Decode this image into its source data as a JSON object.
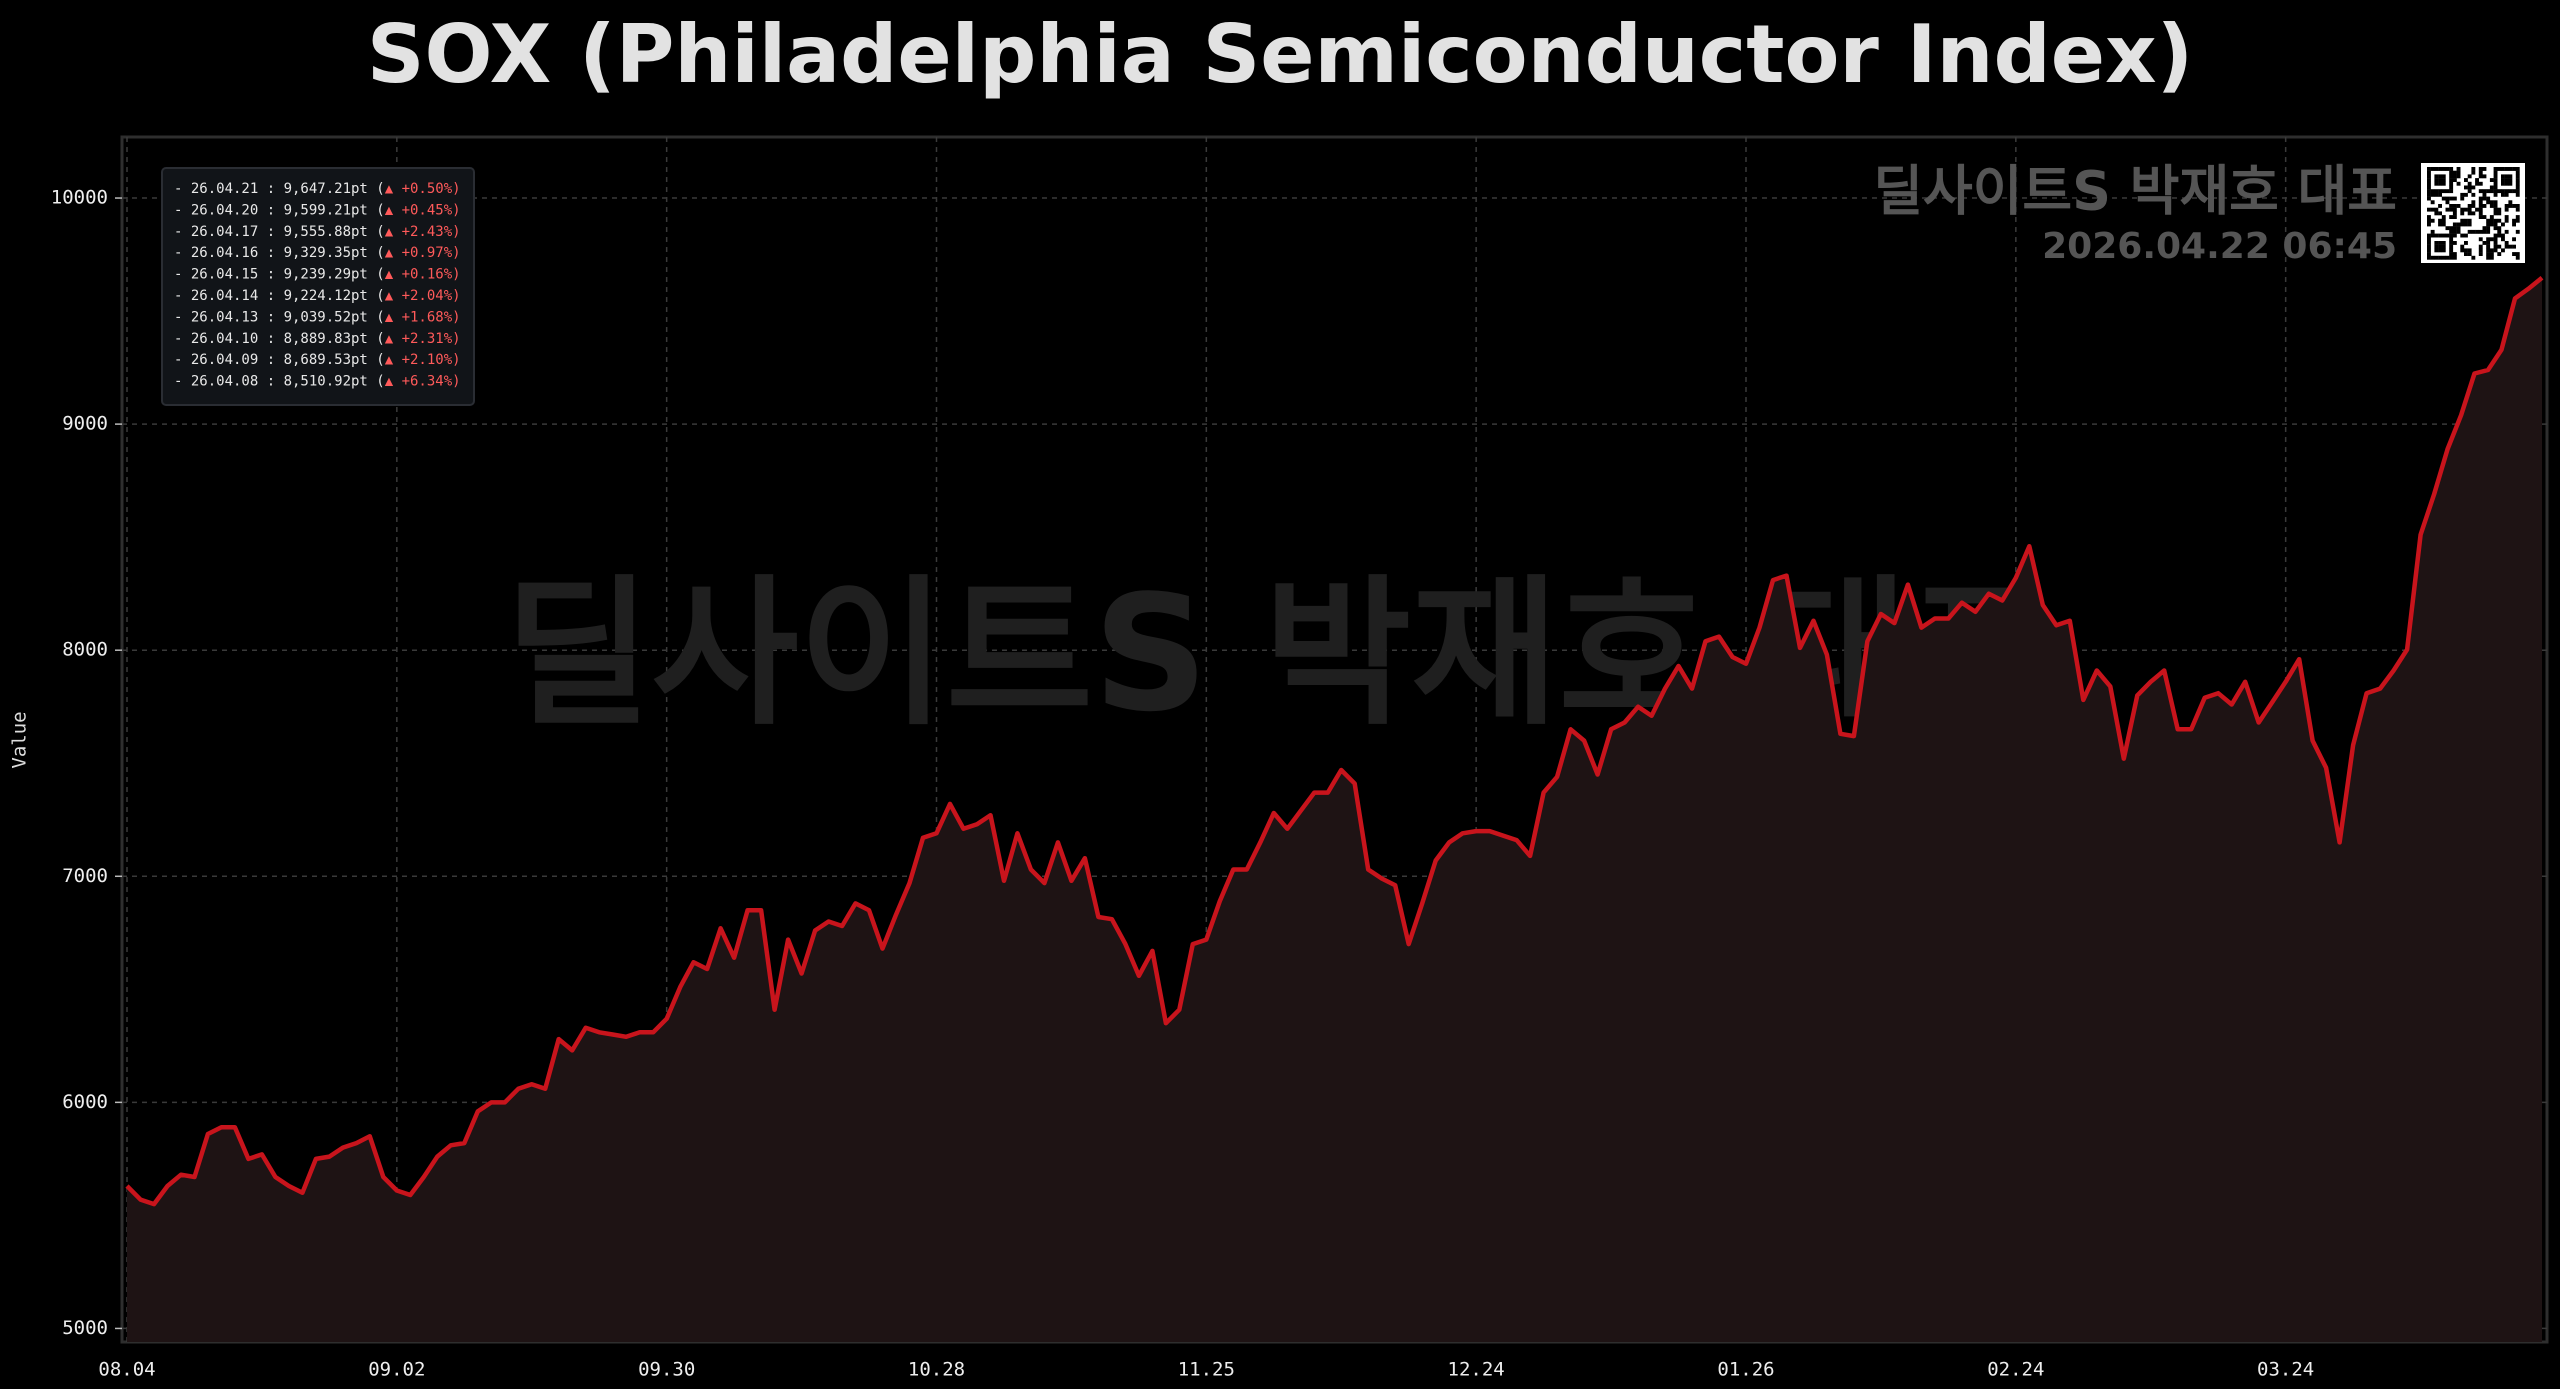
{
  "chart_data": {
    "type": "line",
    "title": "SOX (Philadelphia Semiconductor Index)",
    "y_label": "Value",
    "watermarks": {
      "main": "딜사이트S 박재호 대표",
      "brand": "딜사이트S 박재호 대표",
      "timestamp": "2026.04.22 06:45"
    },
    "annotations": [
      {
        "text": "- 26.04.21 : 9,647.21pt (",
        "change": "▲ +0.50%)"
      },
      {
        "text": "- 26.04.20 : 9,599.21pt (",
        "change": "▲ +0.45%)"
      },
      {
        "text": "- 26.04.17 : 9,555.88pt (",
        "change": "▲ +2.43%)"
      },
      {
        "text": "- 26.04.16 : 9,329.35pt (",
        "change": "▲ +0.97%)"
      },
      {
        "text": "- 26.04.15 : 9,239.29pt (",
        "change": "▲ +0.16%)"
      },
      {
        "text": "- 26.04.14 : 9,224.12pt (",
        "change": "▲ +2.04%)"
      },
      {
        "text": "- 26.04.13 : 9,039.52pt (",
        "change": "▲ +1.68%)"
      },
      {
        "text": "- 26.04.10 : 8,889.83pt (",
        "change": "▲ +2.31%)"
      },
      {
        "text": "- 26.04.09 : 8,689.53pt (",
        "change": "▲ +2.10%)"
      },
      {
        "text": "- 26.04.08 : 8,510.92pt (",
        "change": "▲ +6.34%)"
      }
    ],
    "categories": [
      "08.04",
      null,
      null,
      null,
      null,
      null,
      null,
      null,
      null,
      null,
      null,
      null,
      null,
      null,
      null,
      null,
      null,
      null,
      null,
      null,
      "09.02",
      null,
      null,
      null,
      null,
      null,
      null,
      null,
      null,
      null,
      null,
      null,
      null,
      null,
      null,
      null,
      null,
      null,
      null,
      null,
      "09.30",
      null,
      null,
      null,
      null,
      null,
      null,
      null,
      null,
      null,
      null,
      null,
      null,
      null,
      null,
      null,
      null,
      null,
      null,
      null,
      "10.28",
      null,
      null,
      null,
      null,
      null,
      null,
      null,
      null,
      null,
      null,
      null,
      null,
      null,
      null,
      null,
      null,
      null,
      null,
      null,
      "11.25",
      null,
      null,
      null,
      null,
      null,
      null,
      null,
      null,
      null,
      null,
      null,
      null,
      null,
      null,
      null,
      null,
      null,
      null,
      null,
      "12.24",
      null,
      null,
      null,
      null,
      null,
      null,
      null,
      null,
      null,
      null,
      null,
      null,
      null,
      null,
      null,
      null,
      null,
      null,
      null,
      "01.26",
      null,
      null,
      null,
      null,
      null,
      null,
      null,
      null,
      null,
      null,
      null,
      null,
      null,
      null,
      null,
      null,
      null,
      null,
      null,
      "02.24",
      null,
      null,
      null,
      null,
      null,
      null,
      null,
      null,
      null,
      null,
      null,
      null,
      null,
      null,
      null,
      null,
      null,
      null,
      null,
      "03.24",
      null,
      null,
      null,
      null,
      null,
      null,
      null,
      null,
      null,
      null,
      null,
      null,
      null,
      null,
      null,
      null,
      null,
      null,
      null
    ],
    "values": [
      5630,
      5570,
      5550,
      5630,
      5680,
      5670,
      5860,
      5890,
      5890,
      5750,
      5770,
      5670,
      5630,
      5600,
      5750,
      5760,
      5800,
      5820,
      5850,
      5670,
      5610,
      5590,
      5670,
      5760,
      5810,
      5820,
      5960,
      6000,
      6000,
      6060,
      6080,
      6060,
      6280,
      6230,
      6330,
      6310,
      6300,
      6290,
      6310,
      6310,
      6370,
      6510,
      6620,
      6590,
      6770,
      6640,
      6850,
      6850,
      6410,
      6720,
      6570,
      6760,
      6800,
      6780,
      6880,
      6850,
      6680,
      6830,
      6970,
      7170,
      7190,
      7320,
      7210,
      7230,
      7270,
      6980,
      7190,
      7030,
      6970,
      7150,
      6980,
      7080,
      6820,
      6810,
      6700,
      6560,
      6670,
      6350,
      6410,
      6700,
      6720,
      6890,
      7030,
      7030,
      7150,
      7280,
      7210,
      7290,
      7370,
      7370,
      7470,
      7410,
      7030,
      6990,
      6960,
      6700,
      6880,
      7070,
      7150,
      7190,
      7200,
      7200,
      7180,
      7160,
      7090,
      7370,
      7440,
      7650,
      7600,
      7450,
      7650,
      7680,
      7750,
      7710,
      7830,
      7930,
      7830,
      8040,
      8060,
      7970,
      7940,
      8100,
      8310,
      8330,
      8010,
      8130,
      7980,
      7630,
      7620,
      8040,
      8160,
      8120,
      8290,
      8100,
      8140,
      8140,
      8210,
      8170,
      8250,
      8220,
      8320,
      8460,
      8200,
      8110,
      8130,
      7780,
      7910,
      7840,
      7520,
      7800,
      7860,
      7910,
      7650,
      7650,
      7790,
      7810,
      7760,
      7860,
      7680,
      7770,
      7860,
      7960,
      7600,
      7480,
      7150,
      7580,
      7810,
      7830,
      7910,
      8003,
      8510.92,
      8689.53,
      8889.83,
      9039.52,
      9224.12,
      9239.29,
      9329.35,
      9555.88,
      9599.21,
      9647.21
    ],
    "color": "#c8141c",
    "fill": "#1e1314",
    "ylim": [
      4940,
      10270
    ],
    "yticks": [
      5000,
      6000,
      7000,
      8000,
      9000,
      10000
    ],
    "grid": true
  }
}
